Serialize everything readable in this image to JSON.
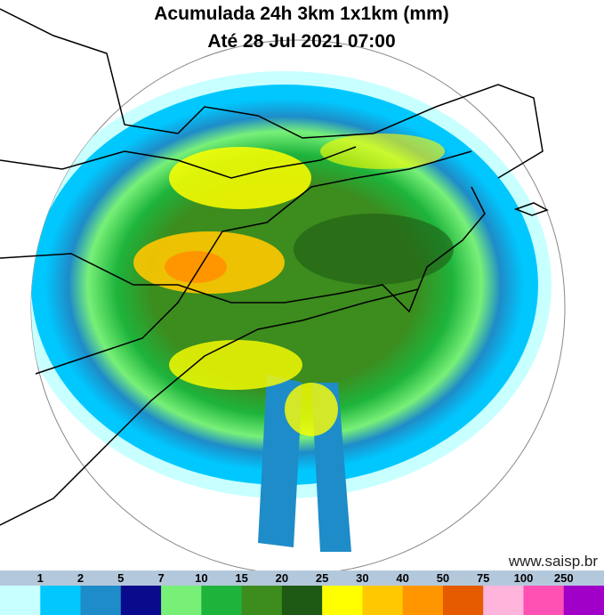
{
  "header": {
    "title": "Acumulada 24h 3km 1x1km (mm)",
    "subtitle": "Até 28 Jul 2021 07:00"
  },
  "watermark": "www.saisp.br",
  "legend": {
    "labels": [
      "1",
      "2",
      "5",
      "7",
      "10",
      "15",
      "20",
      "25",
      "30",
      "40",
      "50",
      "75",
      "100",
      "250"
    ],
    "colors": [
      "#c8ffff",
      "#00c8ff",
      "#1e8cc8",
      "#0a0a8c",
      "#78f078",
      "#1eb43c",
      "#3c8c1e",
      "#1e5a14",
      "#ffff00",
      "#ffc800",
      "#ff9600",
      "#e65a00",
      "#ffb4dc",
      "#ff50b4",
      "#a000c8"
    ]
  }
}
